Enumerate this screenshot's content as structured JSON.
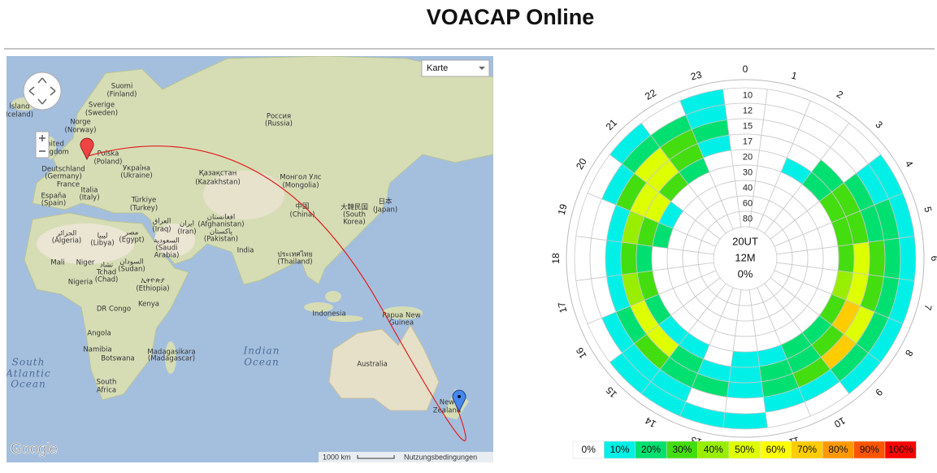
{
  "header": {
    "title": "VOACAP Online"
  },
  "map": {
    "labels": [
      "Ísland",
      "Iceland)",
      "Suomi",
      "(Finland)",
      "Sverige",
      "(Sweden)",
      "Norge",
      "(Norway)",
      "nited",
      "ngdom",
      "Polska",
      "(Poland)",
      "Deutschland",
      "(Germany)",
      "France",
      "Italia",
      "(Italy)",
      "España",
      "(Spain)",
      "Україна",
      "(Ukraine)",
      "Россия",
      "(Russia)",
      "Қазақстан",
      "(Kazakhstan)",
      "Монгол Улс",
      "(Mongolia)",
      "Türkiye",
      "(Turkey)",
      "中国",
      "(China)",
      "大韓民国",
      "(South",
      "Korea)",
      "日本",
      "(Japan)",
      "الجزائر",
      "(Algeria)",
      "ليبيا",
      "(Libya)",
      "مصر",
      "(Egypt)",
      "العراق",
      "(Iraq)",
      "ایران",
      "(Iran)",
      "افغانستان",
      "(Afghanistan)",
      "پاکستان",
      "(Pakistan)",
      "السعودية",
      "(Saudi",
      "Arabia)",
      "India",
      "ประเทศไทย",
      "(Thailand)",
      "Mali",
      "Niger",
      "تشاد",
      "Tchad",
      "(Chad)",
      "السودان",
      "(Sudan)",
      "Nigeria",
      "ኢትዮጵያ",
      "(Ethiopia)",
      "DR Congo",
      "Kenya",
      "Indonesia",
      "Papua New",
      "Guinea",
      "Angola",
      "Namibia",
      "Botswana",
      "Madagasikara",
      "(Madagascar)",
      "South",
      "Atlantic",
      "Ocean",
      "Indian",
      "Ocean",
      "South",
      "Africa",
      "Australia",
      "New",
      "Zealand"
    ],
    "control": "Karte",
    "logo": "Google",
    "scale": "1000 km",
    "terms": "Nutzungsbedingungen"
  },
  "chart": {
    "type": "polar",
    "center_lines": [
      "20UT",
      "12M",
      "0%"
    ],
    "hours": [
      0,
      1,
      2,
      3,
      4,
      5,
      6,
      7,
      8,
      9,
      10,
      11,
      12,
      13,
      14,
      15,
      16,
      17,
      18,
      19,
      20,
      21,
      22,
      23
    ],
    "rings": [
      10,
      12,
      15,
      17,
      20,
      30,
      40,
      60,
      80
    ],
    "cells": [
      [
        0,
        0,
        0,
        0,
        0,
        0,
        0,
        0,
        0
      ],
      [
        0,
        0,
        0,
        0,
        0,
        0,
        0,
        0,
        0
      ],
      [
        0,
        0,
        0,
        0,
        10,
        0,
        0,
        0,
        0
      ],
      [
        0,
        0,
        0,
        20,
        20,
        0,
        0,
        0,
        0
      ],
      [
        10,
        10,
        20,
        30,
        30,
        0,
        0,
        0,
        0
      ],
      [
        10,
        20,
        20,
        30,
        30,
        0,
        0,
        0,
        0
      ],
      [
        10,
        20,
        30,
        50,
        30,
        0,
        0,
        0,
        0
      ],
      [
        10,
        20,
        30,
        50,
        40,
        0,
        0,
        0,
        0
      ],
      [
        10,
        20,
        50,
        70,
        30,
        0,
        0,
        0,
        0
      ],
      [
        10,
        20,
        70,
        30,
        20,
        0,
        0,
        0,
        0
      ],
      [
        0,
        10,
        30,
        20,
        20,
        0,
        0,
        0,
        0
      ],
      [
        0,
        10,
        20,
        20,
        10,
        0,
        0,
        0,
        0
      ],
      [
        10,
        0,
        10,
        10,
        10,
        0,
        0,
        0,
        0
      ],
      [
        10,
        0,
        20,
        10,
        0,
        0,
        0,
        0,
        0
      ],
      [
        10,
        10,
        20,
        20,
        10,
        0,
        0,
        0,
        0
      ],
      [
        10,
        10,
        30,
        50,
        10,
        0,
        0,
        0,
        0
      ],
      [
        0,
        10,
        20,
        50,
        20,
        0,
        0,
        0,
        0
      ],
      [
        0,
        0,
        10,
        40,
        30,
        0,
        0,
        0,
        0
      ],
      [
        0,
        0,
        10,
        30,
        20,
        0,
        0,
        0,
        0
      ],
      [
        0,
        0,
        10,
        40,
        30,
        20,
        0,
        0,
        0
      ],
      [
        0,
        10,
        30,
        50,
        50,
        10,
        0,
        0,
        0
      ],
      [
        10,
        20,
        50,
        50,
        30,
        0,
        0,
        0,
        0
      ],
      [
        0,
        20,
        30,
        30,
        20,
        0,
        0,
        0,
        0
      ],
      [
        10,
        10,
        20,
        10,
        0,
        0,
        0,
        0,
        0
      ]
    ],
    "legend": [
      {
        "value": 0,
        "label": "0%",
        "color": "#ffffff"
      },
      {
        "value": 10,
        "label": "10%",
        "color": "#00f0e8"
      },
      {
        "value": 20,
        "label": "20%",
        "color": "#00e070"
      },
      {
        "value": 30,
        "label": "30%",
        "color": "#44dd10"
      },
      {
        "value": 40,
        "label": "40%",
        "color": "#99ee00"
      },
      {
        "value": 50,
        "label": "50%",
        "color": "#ddff00"
      },
      {
        "value": 60,
        "label": "60%",
        "color": "#ffff00"
      },
      {
        "value": 70,
        "label": "70%",
        "color": "#ffcc00"
      },
      {
        "value": 80,
        "label": "80%",
        "color": "#ff9900"
      },
      {
        "value": 90,
        "label": "90%",
        "color": "#ff5500"
      },
      {
        "value": 100,
        "label": "100%",
        "color": "#ff0000"
      }
    ]
  }
}
